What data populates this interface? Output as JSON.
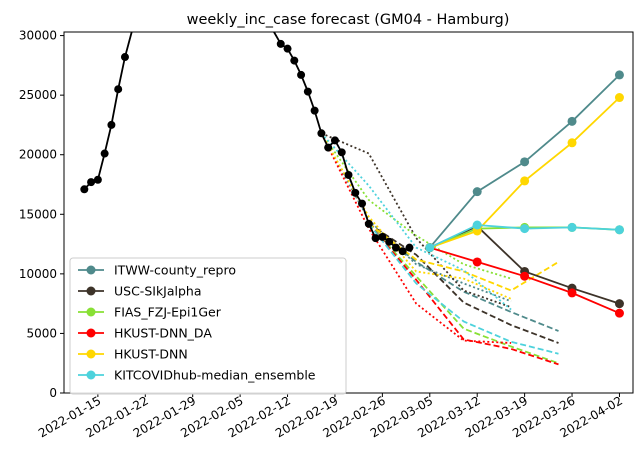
{
  "chart_data": {
    "type": "line",
    "title": "weekly_inc_case forecast (GM04 - Hamburg)",
    "xlabel": "",
    "ylabel": "",
    "x_ticks": [
      "2022-01-15",
      "2022-01-22",
      "2022-01-29",
      "2022-02-05",
      "2022-02-12",
      "2022-02-19",
      "2022-02-26",
      "2022-03-05",
      "2022-03-12",
      "2022-03-19",
      "2022-03-26",
      "2022-04-02"
    ],
    "y_ticks": [
      0,
      5000,
      10000,
      15000,
      20000,
      25000,
      30000
    ],
    "xlim": [
      "2022-01-10",
      "2022-04-04"
    ],
    "ylim": [
      0,
      30300
    ],
    "grid": false,
    "legend_position": "lower-left",
    "truth": {
      "color": "#000000",
      "points": [
        [
          "2022-01-13",
          17100
        ],
        [
          "2022-01-14",
          17700
        ],
        [
          "2022-01-15",
          17900
        ],
        [
          "2022-01-16",
          20100
        ],
        [
          "2022-01-17",
          22500
        ],
        [
          "2022-01-18",
          25500
        ],
        [
          "2022-01-19",
          28200
        ],
        [
          "2022-01-20",
          30300
        ],
        [
          "2022-02-10",
          30300
        ],
        [
          "2022-02-11",
          29300
        ],
        [
          "2022-02-12",
          28900
        ],
        [
          "2022-02-13",
          27900
        ],
        [
          "2022-02-14",
          26700
        ],
        [
          "2022-02-15",
          25300
        ],
        [
          "2022-02-16",
          23700
        ],
        [
          "2022-02-17",
          21800
        ],
        [
          "2022-02-18",
          20600
        ],
        [
          "2022-02-19",
          21200
        ],
        [
          "2022-02-20",
          20200
        ],
        [
          "2022-02-21",
          18300
        ],
        [
          "2022-02-22",
          16800
        ],
        [
          "2022-02-23",
          15900
        ],
        [
          "2022-02-24",
          14200
        ],
        [
          "2022-02-25",
          13000
        ],
        [
          "2022-02-26",
          13100
        ],
        [
          "2022-02-27",
          12700
        ],
        [
          "2022-02-28",
          12200
        ],
        [
          "2022-03-01",
          11900
        ],
        [
          "2022-03-02",
          12200
        ]
      ],
      "markers_from": 1,
      "marker_skip": [
        7,
        8
      ]
    },
    "series": [
      {
        "name": "ITWW-county_repro",
        "color": "#4f8a8b",
        "points": [
          [
            "2022-03-05",
            12200
          ],
          [
            "2022-03-12",
            16900
          ],
          [
            "2022-03-19",
            19400
          ],
          [
            "2022-03-26",
            22800
          ],
          [
            "2022-04-02",
            26700
          ]
        ],
        "past": [
          {
            "style": "dotted",
            "points": [
              [
                "2022-02-17",
                21800
              ],
              [
                "2022-02-24",
                14500
              ],
              [
                "2022-03-03",
                10800
              ],
              [
                "2022-03-10",
                9200
              ],
              [
                "2022-03-17",
                7700
              ]
            ]
          },
          {
            "style": "dashed",
            "points": [
              [
                "2022-02-24",
                14200
              ],
              [
                "2022-03-03",
                11000
              ],
              [
                "2022-03-10",
                8500
              ],
              [
                "2022-03-17",
                6800
              ],
              [
                "2022-03-24",
                5200
              ]
            ]
          }
        ]
      },
      {
        "name": "USC-SIkJalpha",
        "color": "#3d3329",
        "points": [
          [
            "2022-03-05",
            12200
          ],
          [
            "2022-03-12",
            14000
          ],
          [
            "2022-03-19",
            10200
          ],
          [
            "2022-03-26",
            8800
          ],
          [
            "2022-04-02",
            7500
          ]
        ],
        "past": [
          {
            "style": "dotted",
            "points": [
              [
                "2022-02-17",
                21800
              ],
              [
                "2022-02-24",
                20100
              ],
              [
                "2022-03-03",
                13000
              ],
              [
                "2022-03-10",
                8600
              ],
              [
                "2022-03-17",
                7200
              ]
            ]
          },
          {
            "style": "dashed",
            "points": [
              [
                "2022-02-24",
                14200
              ],
              [
                "2022-03-03",
                11600
              ],
              [
                "2022-03-10",
                7600
              ],
              [
                "2022-03-17",
                5700
              ],
              [
                "2022-03-24",
                4200
              ]
            ]
          }
        ]
      },
      {
        "name": "FIAS_FZJ-Epi1Ger",
        "color": "#88e035",
        "points": [
          [
            "2022-03-05",
            12200
          ],
          [
            "2022-03-12",
            13800
          ],
          [
            "2022-03-19",
            13900
          ],
          [
            "2022-03-26",
            13900
          ],
          [
            "2022-04-02",
            13700
          ]
        ],
        "past": [
          {
            "style": "dotted",
            "points": [
              [
                "2022-02-17",
                21800
              ],
              [
                "2022-02-24",
                16200
              ],
              [
                "2022-03-03",
                13200
              ],
              [
                "2022-03-10",
                10800
              ],
              [
                "2022-03-17",
                9600
              ]
            ]
          },
          {
            "style": "dashed",
            "points": [
              [
                "2022-02-24",
                14200
              ],
              [
                "2022-03-03",
                9800
              ],
              [
                "2022-03-10",
                5400
              ],
              [
                "2022-03-17",
                3900
              ],
              [
                "2022-03-24",
                2500
              ]
            ]
          }
        ]
      },
      {
        "name": "HKUST-DNN_DA",
        "color": "#ff0000",
        "points": [
          [
            "2022-03-05",
            12200
          ],
          [
            "2022-03-12",
            11000
          ],
          [
            "2022-03-19",
            9800
          ],
          [
            "2022-03-26",
            8400
          ],
          [
            "2022-04-02",
            6700
          ]
        ],
        "past": [
          {
            "style": "dotted",
            "points": [
              [
                "2022-02-17",
                21800
              ],
              [
                "2022-02-24",
                13800
              ],
              [
                "2022-03-03",
                7500
              ],
              [
                "2022-03-10",
                4400
              ],
              [
                "2022-03-17",
                4200
              ]
            ]
          },
          {
            "style": "dashed",
            "points": [
              [
                "2022-02-24",
                14200
              ],
              [
                "2022-03-03",
                9500
              ],
              [
                "2022-03-10",
                4500
              ],
              [
                "2022-03-17",
                3700
              ],
              [
                "2022-03-24",
                2400
              ]
            ]
          }
        ]
      },
      {
        "name": "HKUST-DNN",
        "color": "#ffd700",
        "points": [
          [
            "2022-03-05",
            12200
          ],
          [
            "2022-03-12",
            13600
          ],
          [
            "2022-03-19",
            17800
          ],
          [
            "2022-03-26",
            21000
          ],
          [
            "2022-04-02",
            24800
          ]
        ],
        "past": [
          {
            "style": "dotted",
            "points": [
              [
                "2022-02-17",
                21800
              ],
              [
                "2022-02-24",
                14800
              ],
              [
                "2022-03-03",
                10200
              ],
              [
                "2022-03-10",
                9600
              ],
              [
                "2022-03-17",
                7900
              ]
            ]
          },
          {
            "style": "dashed",
            "points": [
              [
                "2022-02-24",
                14200
              ],
              [
                "2022-03-03",
                11200
              ],
              [
                "2022-03-10",
                10200
              ],
              [
                "2022-03-17",
                8600
              ],
              [
                "2022-03-24",
                11000
              ]
            ]
          }
        ]
      },
      {
        "name": "KITCOVIDhub-median_ensemble",
        "color": "#4dd2dc",
        "points": [
          [
            "2022-03-05",
            12200
          ],
          [
            "2022-03-12",
            14100
          ],
          [
            "2022-03-19",
            13800
          ],
          [
            "2022-03-26",
            13900
          ],
          [
            "2022-04-02",
            13700
          ]
        ],
        "past": [
          {
            "style": "dotted",
            "points": [
              [
                "2022-02-17",
                21800
              ],
              [
                "2022-02-24",
                17400
              ],
              [
                "2022-03-03",
                12200
              ],
              [
                "2022-03-10",
                10300
              ],
              [
                "2022-03-17",
                7000
              ]
            ]
          },
          {
            "style": "dashed",
            "points": [
              [
                "2022-02-24",
                14200
              ],
              [
                "2022-03-03",
                9200
              ],
              [
                "2022-03-10",
                6000
              ],
              [
                "2022-03-17",
                4300
              ],
              [
                "2022-03-24",
                3300
              ]
            ]
          }
        ]
      }
    ]
  }
}
